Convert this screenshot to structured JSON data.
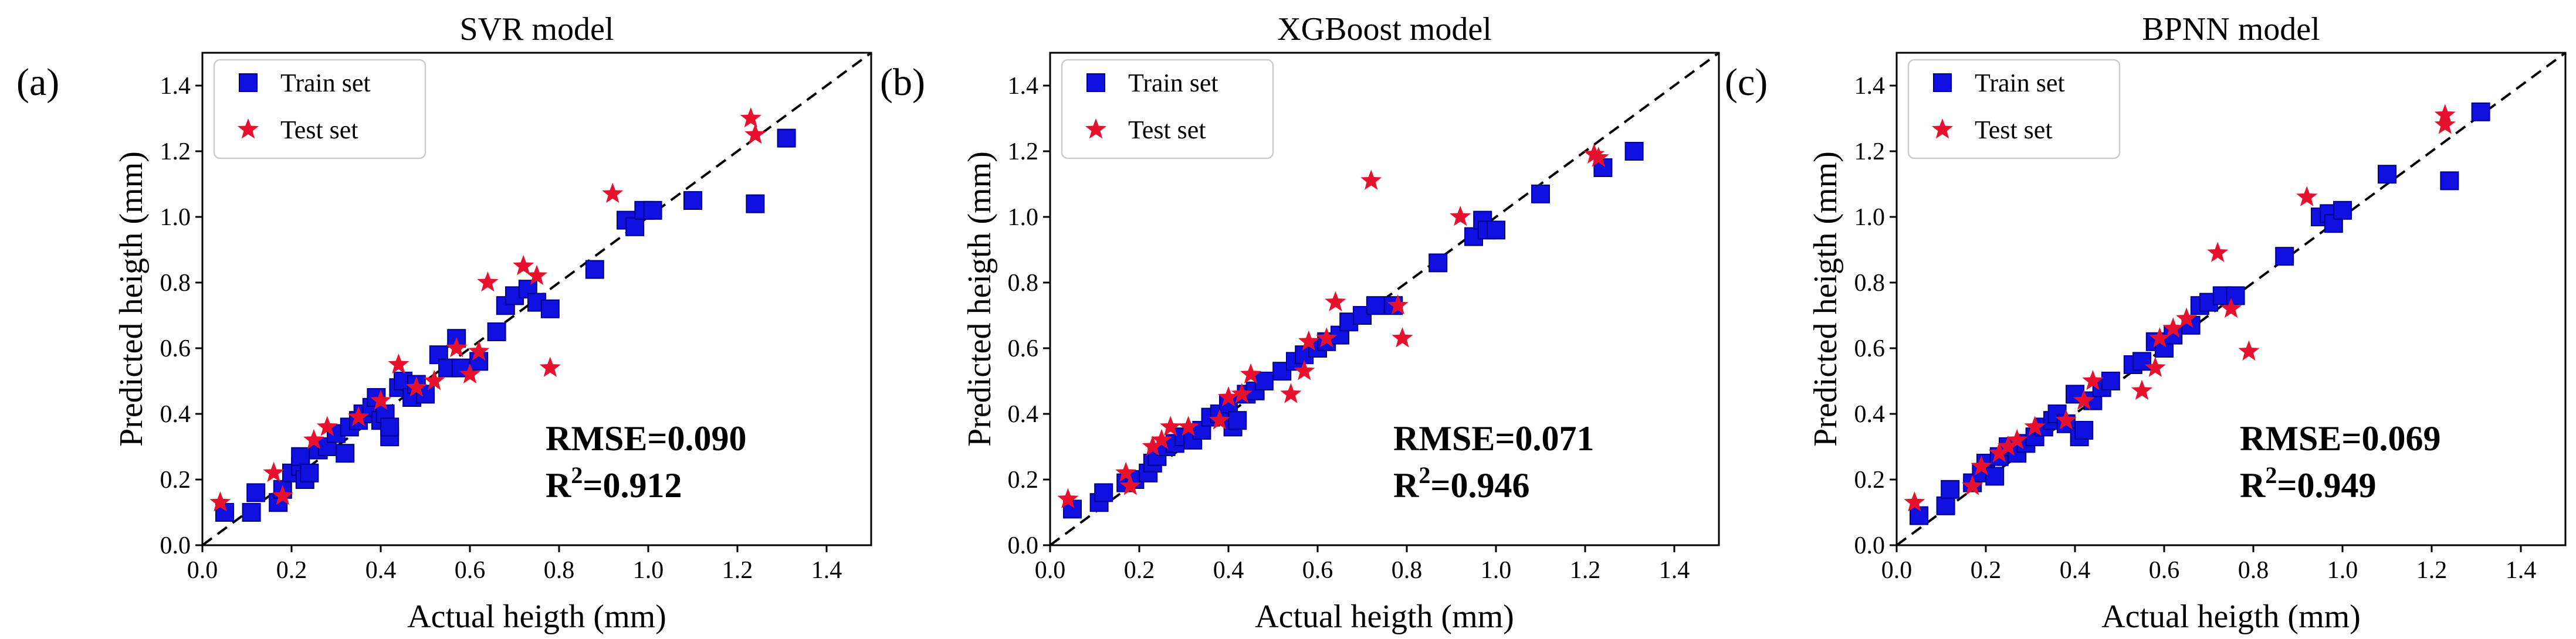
{
  "figure": {
    "name": "parity-plots"
  },
  "colors": {
    "train": "#1010e0",
    "train_edge": "#00008b",
    "test": "#e8112d",
    "line": "#000000"
  },
  "chart_data": [
    {
      "type": "scatter",
      "panel": "(a)",
      "title": "SVR model",
      "xlabel": "Actual heigth (mm)",
      "ylabel": "Predicted heigth (mm)",
      "xlim": [
        0,
        1.5
      ],
      "ylim": [
        0,
        1.5
      ],
      "xticks": [
        0.0,
        0.2,
        0.4,
        0.6,
        0.8,
        1.0,
        1.2,
        1.4
      ],
      "yticks": [
        0.0,
        0.2,
        0.4,
        0.6,
        0.8,
        1.0,
        1.2,
        1.4
      ],
      "legend": [
        "Train set",
        "Test set"
      ],
      "legend_position": "top-left",
      "metrics": {
        "rmse": "RMSE=0.090",
        "r2_prefix": "R",
        "r2_sup": "2",
        "r2_value": "=0.912"
      },
      "series": [
        {
          "name": "Train set",
          "marker": "square",
          "points": [
            [
              0.05,
              0.1
            ],
            [
              0.11,
              0.1
            ],
            [
              0.12,
              0.16
            ],
            [
              0.17,
              0.13
            ],
            [
              0.18,
              0.17
            ],
            [
              0.2,
              0.22
            ],
            [
              0.22,
              0.24
            ],
            [
              0.22,
              0.27
            ],
            [
              0.23,
              0.2
            ],
            [
              0.24,
              0.22
            ],
            [
              0.26,
              0.29
            ],
            [
              0.28,
              0.3
            ],
            [
              0.3,
              0.34
            ],
            [
              0.32,
              0.28
            ],
            [
              0.33,
              0.36
            ],
            [
              0.35,
              0.38
            ],
            [
              0.36,
              0.4
            ],
            [
              0.38,
              0.42
            ],
            [
              0.39,
              0.45
            ],
            [
              0.4,
              0.38
            ],
            [
              0.41,
              0.4
            ],
            [
              0.42,
              0.33
            ],
            [
              0.42,
              0.36
            ],
            [
              0.44,
              0.48
            ],
            [
              0.45,
              0.5
            ],
            [
              0.47,
              0.45
            ],
            [
              0.48,
              0.49
            ],
            [
              0.5,
              0.46
            ],
            [
              0.53,
              0.58
            ],
            [
              0.55,
              0.54
            ],
            [
              0.57,
              0.63
            ],
            [
              0.58,
              0.54
            ],
            [
              0.62,
              0.56
            ],
            [
              0.66,
              0.65
            ],
            [
              0.68,
              0.73
            ],
            [
              0.7,
              0.76
            ],
            [
              0.73,
              0.78
            ],
            [
              0.75,
              0.74
            ],
            [
              0.78,
              0.72
            ],
            [
              0.88,
              0.84
            ],
            [
              0.95,
              0.99
            ],
            [
              0.97,
              0.97
            ],
            [
              0.99,
              1.02
            ],
            [
              1.01,
              1.02
            ],
            [
              1.1,
              1.05
            ],
            [
              1.24,
              1.04
            ],
            [
              1.31,
              1.24
            ]
          ]
        },
        {
          "name": "Test set",
          "marker": "star",
          "points": [
            [
              0.04,
              0.13
            ],
            [
              0.16,
              0.22
            ],
            [
              0.18,
              0.15
            ],
            [
              0.25,
              0.32
            ],
            [
              0.28,
              0.36
            ],
            [
              0.35,
              0.39
            ],
            [
              0.4,
              0.44
            ],
            [
              0.44,
              0.55
            ],
            [
              0.48,
              0.48
            ],
            [
              0.52,
              0.5
            ],
            [
              0.57,
              0.6
            ],
            [
              0.6,
              0.52
            ],
            [
              0.62,
              0.59
            ],
            [
              0.64,
              0.8
            ],
            [
              0.72,
              0.85
            ],
            [
              0.75,
              0.82
            ],
            [
              0.78,
              0.54
            ],
            [
              0.92,
              1.07
            ],
            [
              1.23,
              1.3
            ],
            [
              1.24,
              1.25
            ]
          ]
        }
      ]
    },
    {
      "type": "scatter",
      "panel": "(b)",
      "title": "XGBoost model",
      "xlabel": "Actual heigth (mm)",
      "ylabel": "Predicted heigth (mm)",
      "xlim": [
        0,
        1.5
      ],
      "ylim": [
        0,
        1.5
      ],
      "xticks": [
        0.0,
        0.2,
        0.4,
        0.6,
        0.8,
        1.0,
        1.2,
        1.4
      ],
      "yticks": [
        0.0,
        0.2,
        0.4,
        0.6,
        0.8,
        1.0,
        1.2,
        1.4
      ],
      "legend": [
        "Train set",
        "Test set"
      ],
      "legend_position": "top-left",
      "metrics": {
        "rmse": "RMSE=0.071",
        "r2_prefix": "R",
        "r2_sup": "2",
        "r2_value": "=0.946"
      },
      "series": [
        {
          "name": "Train set",
          "marker": "square",
          "points": [
            [
              0.05,
              0.11
            ],
            [
              0.11,
              0.13
            ],
            [
              0.12,
              0.16
            ],
            [
              0.17,
              0.19
            ],
            [
              0.19,
              0.2
            ],
            [
              0.22,
              0.22
            ],
            [
              0.23,
              0.25
            ],
            [
              0.24,
              0.27
            ],
            [
              0.26,
              0.3
            ],
            [
              0.28,
              0.31
            ],
            [
              0.3,
              0.33
            ],
            [
              0.32,
              0.32
            ],
            [
              0.34,
              0.35
            ],
            [
              0.36,
              0.39
            ],
            [
              0.38,
              0.4
            ],
            [
              0.4,
              0.43
            ],
            [
              0.41,
              0.36
            ],
            [
              0.42,
              0.38
            ],
            [
              0.44,
              0.46
            ],
            [
              0.46,
              0.47
            ],
            [
              0.48,
              0.5
            ],
            [
              0.52,
              0.53
            ],
            [
              0.55,
              0.56
            ],
            [
              0.57,
              0.58
            ],
            [
              0.6,
              0.6
            ],
            [
              0.62,
              0.62
            ],
            [
              0.65,
              0.64
            ],
            [
              0.67,
              0.68
            ],
            [
              0.7,
              0.7
            ],
            [
              0.73,
              0.73
            ],
            [
              0.77,
              0.73
            ],
            [
              0.87,
              0.86
            ],
            [
              0.95,
              0.94
            ],
            [
              0.97,
              0.99
            ],
            [
              0.98,
              0.96
            ],
            [
              1.0,
              0.96
            ],
            [
              1.1,
              1.07
            ],
            [
              1.24,
              1.15
            ],
            [
              1.31,
              1.2
            ]
          ]
        },
        {
          "name": "Test set",
          "marker": "star",
          "points": [
            [
              0.04,
              0.14
            ],
            [
              0.17,
              0.22
            ],
            [
              0.18,
              0.18
            ],
            [
              0.23,
              0.3
            ],
            [
              0.25,
              0.32
            ],
            [
              0.27,
              0.36
            ],
            [
              0.31,
              0.36
            ],
            [
              0.38,
              0.38
            ],
            [
              0.4,
              0.45
            ],
            [
              0.43,
              0.46
            ],
            [
              0.45,
              0.52
            ],
            [
              0.54,
              0.46
            ],
            [
              0.57,
              0.53
            ],
            [
              0.58,
              0.62
            ],
            [
              0.62,
              0.63
            ],
            [
              0.64,
              0.74
            ],
            [
              0.72,
              1.11
            ],
            [
              0.78,
              0.73
            ],
            [
              0.79,
              0.63
            ],
            [
              0.92,
              1.0
            ],
            [
              1.22,
              1.19
            ],
            [
              1.23,
              1.18
            ]
          ]
        }
      ]
    },
    {
      "type": "scatter",
      "panel": "(c)",
      "title": "BPNN model",
      "xlabel": "Actual heigth (mm)",
      "ylabel": "Predicted heigth (mm)",
      "xlim": [
        0,
        1.5
      ],
      "ylim": [
        0,
        1.5
      ],
      "xticks": [
        0.0,
        0.2,
        0.4,
        0.6,
        0.8,
        1.0,
        1.2,
        1.4
      ],
      "yticks": [
        0.0,
        0.2,
        0.4,
        0.6,
        0.8,
        1.0,
        1.2,
        1.4
      ],
      "legend": [
        "Train set",
        "Test set"
      ],
      "legend_position": "top-left",
      "metrics": {
        "rmse": "RMSE=0.069",
        "r2_prefix": "R",
        "r2_sup": "2",
        "r2_value": "=0.949"
      },
      "series": [
        {
          "name": "Train set",
          "marker": "square",
          "points": [
            [
              0.05,
              0.09
            ],
            [
              0.11,
              0.12
            ],
            [
              0.12,
              0.17
            ],
            [
              0.17,
              0.19
            ],
            [
              0.19,
              0.22
            ],
            [
              0.2,
              0.25
            ],
            [
              0.22,
              0.21
            ],
            [
              0.23,
              0.27
            ],
            [
              0.25,
              0.3
            ],
            [
              0.27,
              0.28
            ],
            [
              0.29,
              0.31
            ],
            [
              0.31,
              0.33
            ],
            [
              0.33,
              0.36
            ],
            [
              0.35,
              0.38
            ],
            [
              0.36,
              0.4
            ],
            [
              0.38,
              0.37
            ],
            [
              0.4,
              0.46
            ],
            [
              0.41,
              0.33
            ],
            [
              0.42,
              0.35
            ],
            [
              0.44,
              0.44
            ],
            [
              0.46,
              0.48
            ],
            [
              0.48,
              0.5
            ],
            [
              0.53,
              0.55
            ],
            [
              0.55,
              0.56
            ],
            [
              0.58,
              0.62
            ],
            [
              0.6,
              0.6
            ],
            [
              0.62,
              0.64
            ],
            [
              0.66,
              0.67
            ],
            [
              0.68,
              0.73
            ],
            [
              0.7,
              0.74
            ],
            [
              0.73,
              0.76
            ],
            [
              0.76,
              0.76
            ],
            [
              0.87,
              0.88
            ],
            [
              0.95,
              1.0
            ],
            [
              0.97,
              1.01
            ],
            [
              0.98,
              0.98
            ],
            [
              1.0,
              1.02
            ],
            [
              1.1,
              1.13
            ],
            [
              1.24,
              1.11
            ],
            [
              1.31,
              1.32
            ]
          ]
        },
        {
          "name": "Test set",
          "marker": "star",
          "points": [
            [
              0.04,
              0.13
            ],
            [
              0.17,
              0.18
            ],
            [
              0.19,
              0.24
            ],
            [
              0.23,
              0.28
            ],
            [
              0.25,
              0.3
            ],
            [
              0.27,
              0.32
            ],
            [
              0.31,
              0.36
            ],
            [
              0.38,
              0.38
            ],
            [
              0.42,
              0.44
            ],
            [
              0.44,
              0.5
            ],
            [
              0.55,
              0.47
            ],
            [
              0.58,
              0.54
            ],
            [
              0.59,
              0.63
            ],
            [
              0.62,
              0.66
            ],
            [
              0.65,
              0.69
            ],
            [
              0.72,
              0.89
            ],
            [
              0.75,
              0.72
            ],
            [
              0.79,
              0.59
            ],
            [
              0.92,
              1.06
            ],
            [
              1.23,
              1.28
            ],
            [
              1.23,
              1.31
            ]
          ]
        }
      ]
    }
  ]
}
